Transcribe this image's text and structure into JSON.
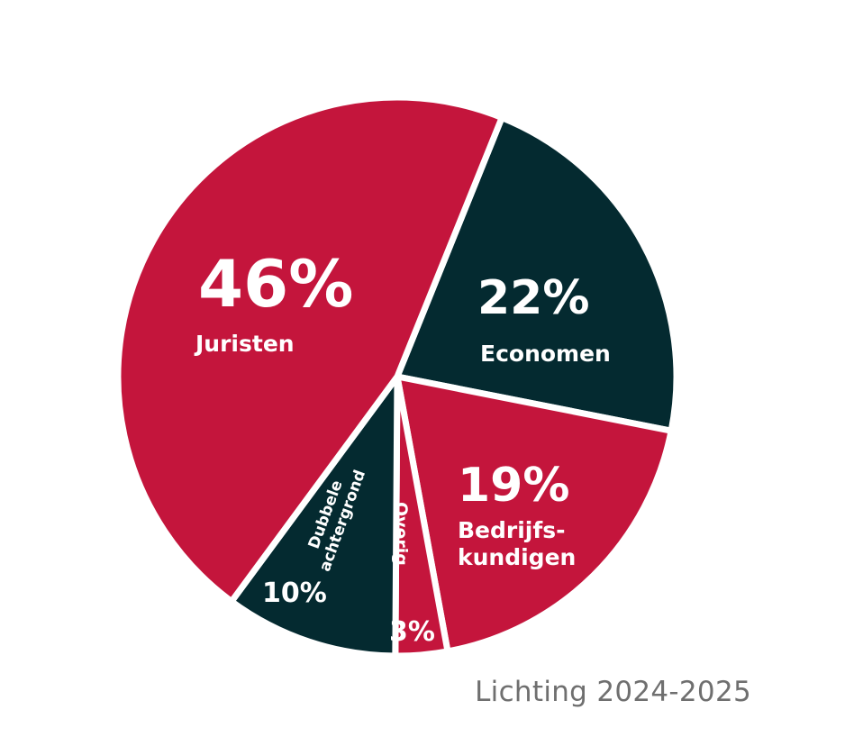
{
  "chart_data": {
    "type": "pie",
    "slices": [
      {
        "percent_label": "46%",
        "label_lines": [
          "Juristen"
        ],
        "value": 46,
        "color": "#c4153c"
      },
      {
        "percent_label": "22%",
        "label_lines": [
          "Economen"
        ],
        "value": 22,
        "color": "#042a30"
      },
      {
        "percent_label": "19%",
        "label_lines": [
          "Bedrijfs-",
          "kundigen"
        ],
        "value": 19,
        "color": "#c4153c"
      },
      {
        "percent_label": "3%",
        "label_lines": [
          "Overig"
        ],
        "value": 3,
        "color": "#c4153c"
      },
      {
        "percent_label": "10%",
        "label_lines": [
          "Dubbele",
          "achtergrond"
        ],
        "value": 10,
        "color": "#042a30"
      }
    ],
    "legend": "none"
  },
  "caption": "Lichting 2024-2025"
}
